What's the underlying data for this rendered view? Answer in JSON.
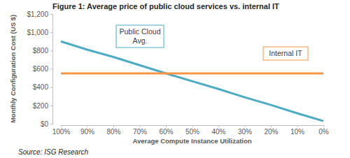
{
  "chart_data": {
    "type": "line",
    "title": "Figure 1: Average price of public cloud services vs. internal IT",
    "x_label": "Average Compute Instance Utilization",
    "y_label": "Monthly Configuration Cost (US $)",
    "source": "Source: ISG Research",
    "categories": [
      "100%",
      "90%",
      "80%",
      "70%",
      "60%",
      "50%",
      "40%",
      "30%",
      "20%",
      "10%",
      "0%"
    ],
    "series": [
      {
        "name": "Public Cloud Avg.",
        "color": "#4bacc6",
        "values": [
          900,
          810,
          730,
          640,
          550,
          465,
          380,
          290,
          205,
          115,
          30
        ]
      },
      {
        "name": "Internal IT",
        "color": "#f79646",
        "values": [
          550,
          550,
          550,
          550,
          550,
          550,
          550,
          550,
          550,
          550,
          550
        ]
      }
    ],
    "ylim": [
      0,
      1200
    ],
    "yticks": [
      {
        "value": 0,
        "label": "$0"
      },
      {
        "value": 200,
        "label": "$200"
      },
      {
        "value": 400,
        "label": "$400"
      },
      {
        "value": 600,
        "label": "$600"
      },
      {
        "value": 800,
        "label": "$800"
      },
      {
        "value": 1000,
        "label": "$1,000"
      },
      {
        "value": 1200,
        "label": "$1,200"
      }
    ],
    "grid": false
  }
}
